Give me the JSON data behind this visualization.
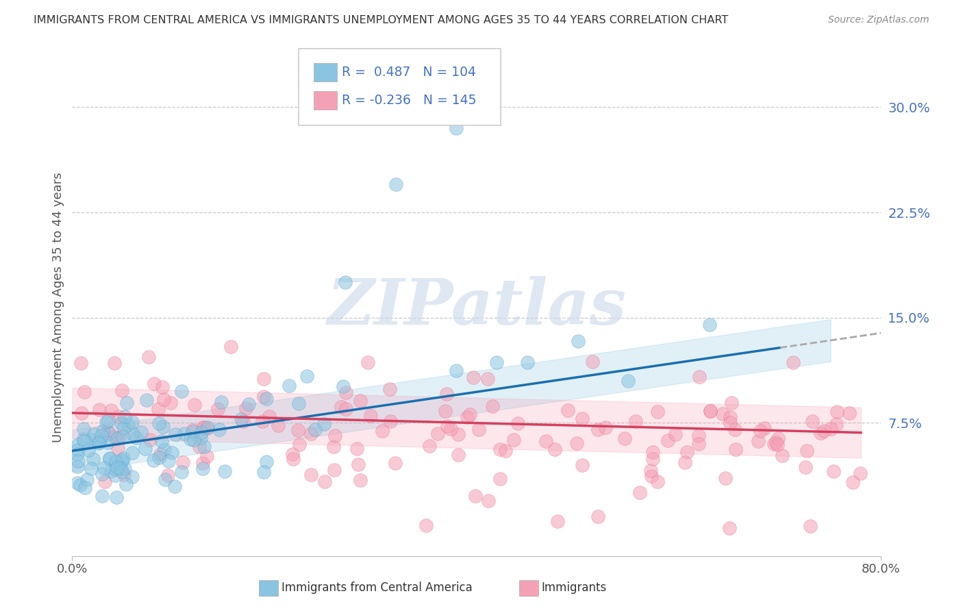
{
  "title": "IMMIGRANTS FROM CENTRAL AMERICA VS IMMIGRANTS UNEMPLOYMENT AMONG AGES 35 TO 44 YEARS CORRELATION CHART",
  "source": "Source: ZipAtlas.com",
  "ylabel": "Unemployment Among Ages 35 to 44 years",
  "ytick_vals": [
    0.075,
    0.15,
    0.225,
    0.3
  ],
  "ytick_labels": [
    "7.5%",
    "15.0%",
    "22.5%",
    "30.0%"
  ],
  "xlim": [
    0.0,
    0.8
  ],
  "ylim": [
    -0.02,
    0.335
  ],
  "legend_blue_r": "0.487",
  "legend_blue_n": "104",
  "legend_pink_r": "-0.236",
  "legend_pink_n": "145",
  "blue_color": "#89c4e1",
  "pink_color": "#f4a0b5",
  "blue_edge_color": "#5b9ec9",
  "pink_edge_color": "#e8708a",
  "blue_line_color": "#1a6faf",
  "pink_line_color": "#d44060",
  "background_color": "#ffffff",
  "watermark_color": "#c8d8ea",
  "watermark_text": "ZIPatlas",
  "grid_color": "#c8c8c8",
  "ytick_color": "#4472c4",
  "title_color": "#333333",
  "source_color": "#888888"
}
